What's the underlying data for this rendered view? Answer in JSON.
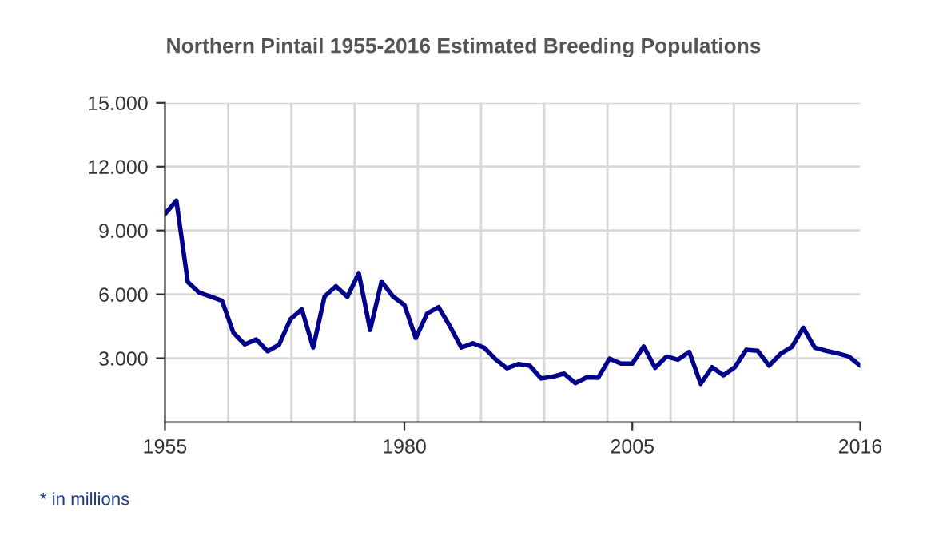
{
  "chart_data": {
    "type": "line",
    "title": "Northern Pintail 1955-2016 Estimated Breeding Populations",
    "categories": [
      "1955",
      null,
      null,
      null,
      null,
      null,
      null,
      null,
      null,
      null,
      null,
      null,
      null,
      null,
      null,
      null,
      null,
      null,
      null,
      null,
      null,
      "1980",
      null,
      null,
      null,
      null,
      null,
      null,
      null,
      null,
      null,
      null,
      null,
      null,
      null,
      null,
      null,
      null,
      null,
      null,
      null,
      "2005",
      null,
      null,
      null,
      null,
      null,
      null,
      null,
      null,
      null,
      null,
      null,
      null,
      null,
      null,
      null,
      null,
      null,
      null,
      null,
      "2016"
    ],
    "series": [
      {
        "color": "#00008b",
        "values": [
          9.78,
          10.4,
          6.58,
          6.08,
          5.9,
          5.7,
          4.2,
          3.65,
          3.88,
          3.33,
          3.63,
          4.83,
          5.3,
          3.5,
          5.9,
          6.38,
          5.88,
          7.0,
          4.33,
          6.6,
          5.9,
          5.5,
          3.95,
          5.1,
          5.4,
          4.5,
          3.5,
          3.7,
          3.5,
          2.95,
          2.53,
          2.73,
          2.65,
          2.05,
          2.13,
          2.28,
          1.83,
          2.1,
          2.08,
          2.98,
          2.75,
          2.75,
          3.55,
          2.55,
          3.08,
          2.93,
          3.3,
          1.8,
          2.58,
          2.2,
          2.58,
          3.4,
          3.35,
          2.65,
          3.2,
          3.53,
          4.43,
          3.5,
          3.35,
          3.23,
          3.08,
          2.65
        ]
      }
    ],
    "ylim": [
      0,
      15
    ],
    "yticks": [
      {
        "value": 3,
        "label": "3.000"
      },
      {
        "value": 6,
        "label": "6.000"
      },
      {
        "value": 9,
        "label": "9.000"
      },
      {
        "value": 12,
        "label": "12.000"
      },
      {
        "value": 15,
        "label": "15.000"
      }
    ],
    "grid": true,
    "annotations": [
      "* in millions"
    ]
  }
}
